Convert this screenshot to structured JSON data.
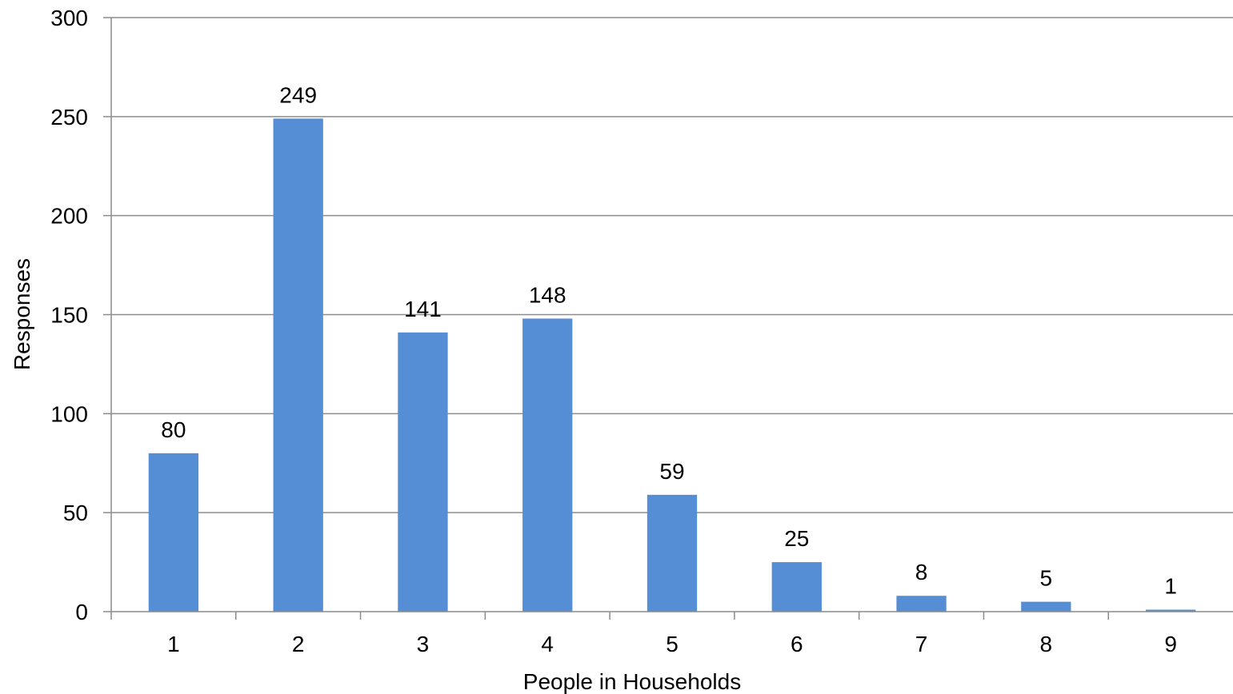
{
  "chart_data": {
    "type": "bar",
    "title": "",
    "xlabel": "People in Households",
    "ylabel": "Responses",
    "categories": [
      "1",
      "2",
      "3",
      "4",
      "5",
      "6",
      "7",
      "8",
      "9"
    ],
    "values": [
      80,
      249,
      141,
      148,
      59,
      25,
      8,
      5,
      1
    ],
    "ylim": [
      0,
      300
    ],
    "yticks": [
      0,
      50,
      100,
      150,
      200,
      250,
      300
    ],
    "grid": true,
    "legend": "none",
    "data_labels": true,
    "colors": {
      "bar": "#558ed5",
      "grid": "#8c8c8c",
      "axis": "#8c8c8c"
    }
  }
}
